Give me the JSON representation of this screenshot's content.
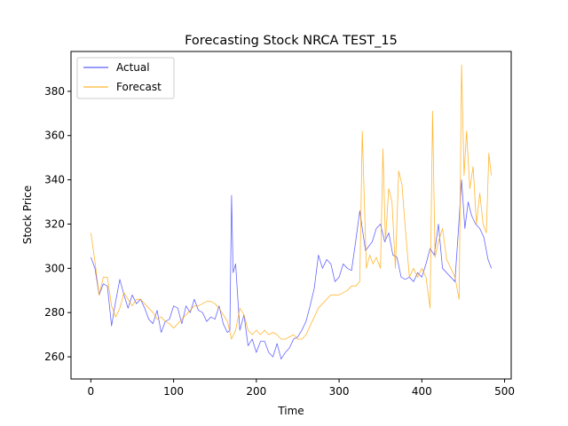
{
  "chart_data": {
    "type": "line",
    "title": "Forecasting Stock NRCA TEST_15",
    "xlabel": "Time",
    "ylabel": "Stock Price",
    "xlim": [
      -24,
      508
    ],
    "ylim": [
      250,
      398
    ],
    "xticks": [
      0,
      100,
      200,
      300,
      400,
      500
    ],
    "yticks": [
      260,
      280,
      300,
      320,
      340,
      360,
      380
    ],
    "legend_position": "top-left",
    "grid": false,
    "series": [
      {
        "name": "Actual",
        "color": "#3333ff",
        "x": [
          0,
          5,
          10,
          15,
          20,
          25,
          30,
          35,
          40,
          45,
          50,
          55,
          60,
          65,
          70,
          75,
          80,
          85,
          90,
          95,
          100,
          105,
          110,
          115,
          120,
          125,
          130,
          135,
          140,
          145,
          150,
          155,
          160,
          165,
          168,
          170,
          172,
          175,
          180,
          185,
          190,
          195,
          200,
          205,
          210,
          215,
          220,
          225,
          230,
          235,
          240,
          245,
          250,
          255,
          260,
          265,
          270,
          275,
          280,
          285,
          290,
          295,
          300,
          305,
          310,
          315,
          320,
          325,
          328,
          332,
          336,
          340,
          345,
          350,
          355,
          360,
          365,
          370,
          375,
          380,
          385,
          390,
          395,
          400,
          405,
          410,
          415,
          420,
          425,
          430,
          435,
          440,
          445,
          448,
          452,
          456,
          460,
          465,
          470,
          475,
          480,
          484
        ],
        "values": [
          305,
          300,
          288,
          293,
          292,
          274,
          285,
          295,
          288,
          282,
          288,
          284,
          286,
          282,
          277,
          275,
          281,
          271,
          276,
          277,
          283,
          282,
          275,
          283,
          280,
          286,
          281,
          280,
          276,
          278,
          277,
          283,
          275,
          271,
          272,
          333,
          298,
          302,
          272,
          279,
          265,
          268,
          262,
          267,
          267,
          262,
          260,
          266,
          259,
          262,
          264,
          268,
          269,
          272,
          276,
          283,
          291,
          306,
          300,
          304,
          302,
          294,
          296,
          302,
          300,
          299,
          312,
          326,
          318,
          308,
          310,
          312,
          318,
          320,
          312,
          316,
          306,
          305,
          296,
          295,
          296,
          294,
          298,
          296,
          302,
          309,
          306,
          320,
          300,
          298,
          296,
          294,
          322,
          340,
          318,
          330,
          324,
          320,
          318,
          314,
          304,
          300
        ]
      },
      {
        "name": "Forecast",
        "color": "#ffa500",
        "x": [
          0,
          5,
          10,
          15,
          20,
          25,
          30,
          35,
          40,
          45,
          50,
          55,
          60,
          65,
          70,
          75,
          80,
          85,
          90,
          95,
          100,
          105,
          110,
          115,
          120,
          125,
          130,
          135,
          140,
          145,
          150,
          155,
          160,
          165,
          170,
          175,
          180,
          185,
          190,
          195,
          200,
          205,
          210,
          215,
          220,
          225,
          230,
          235,
          240,
          245,
          250,
          255,
          260,
          265,
          270,
          275,
          280,
          285,
          290,
          295,
          300,
          305,
          310,
          315,
          320,
          325,
          328,
          333,
          337,
          341,
          345,
          350,
          353,
          356,
          360,
          364,
          368,
          372,
          376,
          380,
          385,
          390,
          395,
          400,
          405,
          410,
          413,
          416,
          420,
          425,
          430,
          435,
          440,
          445,
          448,
          451,
          454,
          458,
          462,
          466,
          470,
          474,
          478,
          481,
          484
        ],
        "values": [
          316,
          303,
          288,
          296,
          296,
          283,
          278,
          282,
          289,
          286,
          283,
          286,
          286,
          284,
          282,
          280,
          277,
          278,
          276,
          275,
          273,
          275,
          277,
          279,
          281,
          283,
          283,
          284,
          285,
          285,
          284,
          282,
          279,
          276,
          268,
          272,
          282,
          279,
          272,
          270,
          272,
          270,
          272,
          270,
          271,
          270,
          268,
          268,
          269,
          270,
          268,
          268,
          270,
          274,
          278,
          282,
          284,
          286,
          288,
          288,
          288,
          289,
          290,
          292,
          292,
          294,
          362,
          300,
          306,
          302,
          305,
          300,
          354,
          312,
          336,
          330,
          300,
          344,
          338,
          318,
          296,
          300,
          296,
          300,
          296,
          282,
          371,
          305,
          312,
          318,
          304,
          300,
          296,
          286,
          392,
          342,
          362,
          336,
          346,
          320,
          334,
          320,
          316,
          352,
          342
        ]
      }
    ]
  }
}
